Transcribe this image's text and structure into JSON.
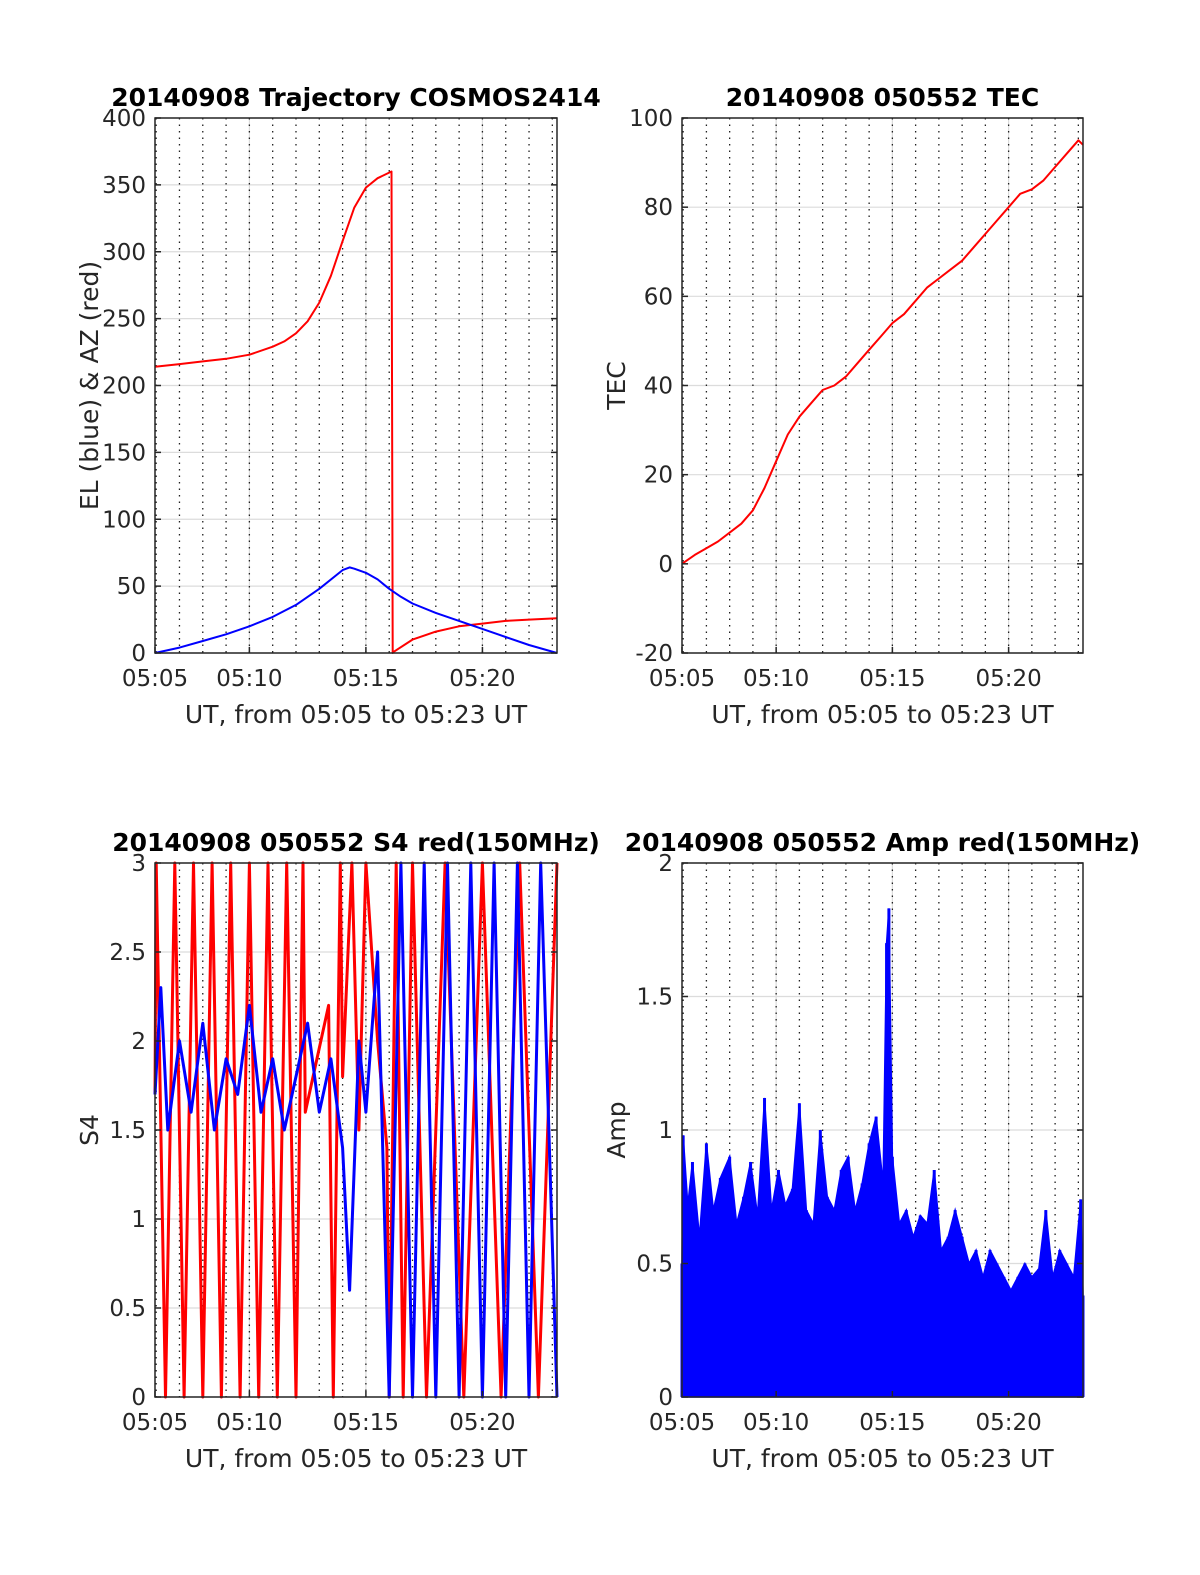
{
  "chart_data": [
    {
      "id": "trajectory",
      "type": "line",
      "title": "20140908 Trajectory COSMOS2414",
      "xlabel": "UT, from 05:05 to 05:23 UT",
      "ylabel": "EL (blue) & AZ (red)",
      "xlim": [
        5.95,
        23.2
      ],
      "ylim": [
        0,
        400
      ],
      "xticks": [
        {
          "v": 5.95,
          "label": "05:05"
        },
        {
          "v": 10,
          "label": "05:10"
        },
        {
          "v": 15,
          "label": "05:15"
        },
        {
          "v": 20,
          "label": "05:20"
        }
      ],
      "yticks": [
        {
          "v": 0,
          "label": "0"
        },
        {
          "v": 50,
          "label": "50"
        },
        {
          "v": 100,
          "label": "100"
        },
        {
          "v": 150,
          "label": "150"
        },
        {
          "v": 200,
          "label": "200"
        },
        {
          "v": 250,
          "label": "250"
        },
        {
          "v": 300,
          "label": "300"
        },
        {
          "v": 350,
          "label": "350"
        },
        {
          "v": 400,
          "label": "400"
        }
      ],
      "grid": true,
      "series": [
        {
          "color": "#ff0000",
          "x": [
            5.95,
            7,
            8,
            9,
            10,
            11,
            11.5,
            12,
            12.5,
            13,
            13.5,
            14,
            14.5,
            15,
            15.5,
            16.1,
            16.15,
            16.2,
            17,
            18,
            19,
            20,
            21,
            22,
            23.2
          ],
          "y": [
            214,
            216,
            218,
            220,
            223,
            229,
            233,
            239,
            248,
            262,
            282,
            308,
            333,
            348,
            355,
            360,
            0,
            1,
            10,
            16,
            20,
            22,
            24,
            25,
            26
          ]
        },
        {
          "color": "#0000ff",
          "x": [
            5.95,
            7,
            8,
            9,
            10,
            11,
            12,
            13,
            14,
            14.3,
            14.5,
            15,
            15.5,
            16,
            16.5,
            17,
            18,
            19,
            20,
            21,
            22,
            23.2
          ],
          "y": [
            0,
            4,
            9,
            14,
            20,
            27,
            36,
            48,
            62,
            64,
            63,
            60,
            55,
            48,
            42,
            37,
            30,
            24,
            18,
            12,
            6,
            0
          ]
        }
      ]
    },
    {
      "id": "tec",
      "type": "line",
      "title": "20140908 050552 TEC",
      "xlabel": "UT, from 05:05 to 05:23 UT",
      "ylabel": "TEC",
      "xlim": [
        5.95,
        23.2
      ],
      "ylim": [
        -20,
        100
      ],
      "xticks": [
        {
          "v": 5.95,
          "label": "05:05"
        },
        {
          "v": 10,
          "label": "05:10"
        },
        {
          "v": 15,
          "label": "05:15"
        },
        {
          "v": 20,
          "label": "05:20"
        }
      ],
      "yticks": [
        {
          "v": -20,
          "label": "-20"
        },
        {
          "v": 0,
          "label": "0"
        },
        {
          "v": 20,
          "label": "20"
        },
        {
          "v": 40,
          "label": "40"
        },
        {
          "v": 60,
          "label": "60"
        },
        {
          "v": 80,
          "label": "80"
        },
        {
          "v": 100,
          "label": "100"
        }
      ],
      "grid": true,
      "series": [
        {
          "color": "#ff0000",
          "x": [
            5.95,
            6.5,
            7,
            7.5,
            8,
            8.5,
            9,
            9.5,
            10,
            10.5,
            11,
            11.5,
            12,
            12.5,
            13,
            13.5,
            14,
            14.5,
            15,
            15.5,
            16,
            16.5,
            17,
            17.5,
            18,
            18.5,
            19,
            19.5,
            20,
            20.5,
            21,
            21.5,
            22,
            22.5,
            23,
            23.2
          ],
          "y": [
            0,
            2,
            3.5,
            5,
            7,
            9,
            12,
            17,
            23,
            29,
            33,
            36,
            39,
            40,
            42,
            45,
            48,
            51,
            54,
            56,
            59,
            62,
            64,
            66,
            68,
            71,
            74,
            77,
            80,
            83,
            84,
            86,
            89,
            92,
            95,
            94
          ]
        }
      ]
    },
    {
      "id": "s4",
      "type": "line",
      "title": "20140908 050552 S4 red(150MHz)",
      "xlabel": "UT, from 05:05 to 05:23 UT",
      "ylabel": "S4",
      "xlim": [
        5.95,
        23.2
      ],
      "ylim": [
        0,
        3
      ],
      "xticks": [
        {
          "v": 5.95,
          "label": "05:05"
        },
        {
          "v": 10,
          "label": "05:10"
        },
        {
          "v": 15,
          "label": "05:15"
        },
        {
          "v": 20,
          "label": "05:20"
        }
      ],
      "yticks": [
        {
          "v": 0,
          "label": "0"
        },
        {
          "v": 0.5,
          "label": "0.5"
        },
        {
          "v": 1,
          "label": "1"
        },
        {
          "v": 1.5,
          "label": "1.5"
        },
        {
          "v": 2,
          "label": "2"
        },
        {
          "v": 2.5,
          "label": "2.5"
        },
        {
          "v": 3,
          "label": "3"
        }
      ],
      "grid": true,
      "series": [
        {
          "color": "#ff0000",
          "x": [
            5.95,
            6.0,
            6.4,
            6.8,
            7.2,
            7.6,
            8.0,
            8.4,
            8.8,
            9.2,
            9.6,
            10.0,
            10.4,
            10.8,
            11.2,
            11.6,
            12.0,
            12.3,
            12.4,
            13.4,
            13.6,
            13.9,
            14.0,
            14.4,
            14.7,
            15.0,
            15.5,
            15.9,
            16.0,
            16.3,
            16.6,
            17.0,
            17.6,
            18.4,
            19.2,
            20.0,
            20.8,
            21.6,
            22.4,
            23.2
          ],
          "y": [
            1.7,
            3,
            0,
            3,
            0,
            3,
            0,
            3,
            0,
            3,
            0,
            3,
            0,
            3,
            0,
            3,
            0,
            3,
            1.6,
            2.2,
            0,
            3,
            1.8,
            3,
            1.5,
            3,
            2.0,
            1.4,
            0,
            3,
            0,
            3,
            0,
            3,
            0,
            3,
            0,
            3,
            0,
            3
          ]
        },
        {
          "color": "#0000ff",
          "x": [
            5.95,
            6.2,
            6.5,
            7.0,
            7.5,
            8.0,
            8.5,
            9.0,
            9.5,
            10.0,
            10.5,
            11.0,
            11.5,
            12.0,
            12.5,
            13.0,
            13.5,
            14.0,
            14.3,
            14.5,
            14.7,
            15.0,
            15.5,
            16.0,
            16.5,
            17.0,
            17.5,
            18.0,
            18.5,
            19.0,
            19.5,
            20.0,
            20.5,
            21.0,
            21.5,
            22.0,
            22.5,
            23.2
          ],
          "y": [
            1.7,
            2.3,
            1.5,
            2.0,
            1.6,
            2.1,
            1.5,
            1.9,
            1.7,
            2.2,
            1.6,
            1.9,
            1.5,
            1.8,
            2.1,
            1.6,
            1.9,
            1.4,
            0.6,
            1.3,
            2.0,
            1.6,
            2.5,
            0,
            3,
            0,
            3,
            0,
            3,
            0,
            3,
            0,
            3,
            0,
            3,
            0,
            3,
            0
          ]
        }
      ]
    },
    {
      "id": "amp",
      "type": "bar",
      "title": "20140908 050552 Amp red(150MHz)",
      "xlabel": "UT, from 05:05 to 05:23 UT",
      "ylabel": "Amp",
      "xlim": [
        5.95,
        23.2
      ],
      "ylim": [
        0,
        2
      ],
      "xticks": [
        {
          "v": 5.95,
          "label": "05:05"
        },
        {
          "v": 10,
          "label": "05:10"
        },
        {
          "v": 15,
          "label": "05:15"
        },
        {
          "v": 20,
          "label": "05:20"
        }
      ],
      "yticks": [
        {
          "v": 0,
          "label": "0"
        },
        {
          "v": 0.5,
          "label": "0.5"
        },
        {
          "v": 1,
          "label": "1"
        },
        {
          "v": 1.5,
          "label": "1.5"
        },
        {
          "v": 2,
          "label": "2"
        }
      ],
      "grid": true,
      "series": [
        {
          "color": "#0000ff",
          "x": [
            5.95,
            6.0,
            6.2,
            6.4,
            6.7,
            7.0,
            7.3,
            7.6,
            8.0,
            8.3,
            8.6,
            8.9,
            9.2,
            9.5,
            9.8,
            10.1,
            10.4,
            10.7,
            11.0,
            11.3,
            11.6,
            11.9,
            12.2,
            12.5,
            12.8,
            13.1,
            13.4,
            13.7,
            14.0,
            14.3,
            14.6,
            14.75,
            14.85,
            15.0,
            15.3,
            15.6,
            15.9,
            16.2,
            16.5,
            16.8,
            17.1,
            17.4,
            17.7,
            18.0,
            18.3,
            18.6,
            18.9,
            19.2,
            19.5,
            19.8,
            20.1,
            20.4,
            20.7,
            21.0,
            21.3,
            21.6,
            21.9,
            22.2,
            22.5,
            22.8,
            23.1,
            23.2
          ],
          "y": [
            0.5,
            0.98,
            0.72,
            0.88,
            0.6,
            0.95,
            0.7,
            0.82,
            0.9,
            0.65,
            0.75,
            0.88,
            0.68,
            1.12,
            0.7,
            0.85,
            0.72,
            0.78,
            1.1,
            0.7,
            0.65,
            1.0,
            0.75,
            0.7,
            0.85,
            0.9,
            0.7,
            0.8,
            0.95,
            1.05,
            0.8,
            1.7,
            1.83,
            0.9,
            0.65,
            0.7,
            0.6,
            0.68,
            0.65,
            0.85,
            0.55,
            0.6,
            0.7,
            0.6,
            0.5,
            0.55,
            0.45,
            0.55,
            0.5,
            0.45,
            0.4,
            0.45,
            0.5,
            0.45,
            0.48,
            0.7,
            0.45,
            0.55,
            0.5,
            0.45,
            0.74,
            0.38
          ]
        }
      ]
    }
  ]
}
